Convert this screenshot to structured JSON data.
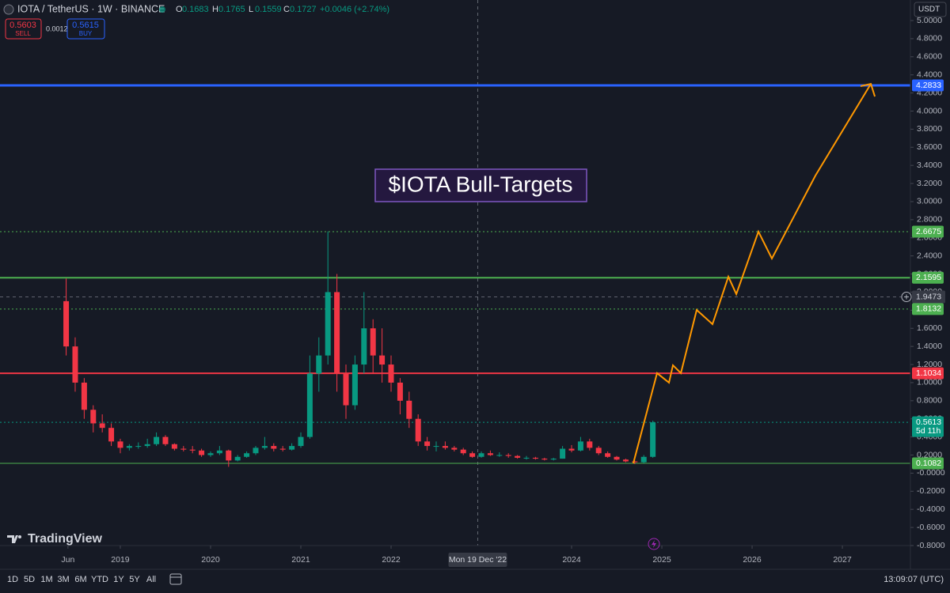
{
  "chart_data": {
    "type": "candlestick",
    "title": "$IOTA Bull-Targets",
    "candles": {
      "up_color": "#089981",
      "down_color": "#f23645",
      "x": [
        2018.4,
        2018.5,
        2018.6,
        2018.7,
        2018.8,
        2018.9,
        2019.0,
        2019.1,
        2019.2,
        2019.3,
        2019.4,
        2019.5,
        2019.6,
        2019.7,
        2019.8,
        2019.9,
        2020.0,
        2020.1,
        2020.2,
        2020.3,
        2020.4,
        2020.5,
        2020.6,
        2020.7,
        2020.8,
        2020.9,
        2021.0,
        2021.1,
        2021.2,
        2021.3,
        2021.4,
        2021.5,
        2021.6,
        2021.7,
        2021.8,
        2021.9,
        2022.0,
        2022.1,
        2022.2,
        2022.3,
        2022.4,
        2022.5,
        2022.6,
        2022.7,
        2022.8,
        2022.9,
        2023.0,
        2023.1,
        2023.2,
        2023.3,
        2023.4,
        2023.5,
        2023.6,
        2023.7,
        2023.8,
        2023.9,
        2024.0,
        2024.1,
        2024.2,
        2024.3,
        2024.4,
        2024.5,
        2024.6,
        2024.7,
        2024.8,
        2024.9
      ],
      "open": [
        1.9,
        1.4,
        1.0,
        0.7,
        0.55,
        0.5,
        0.35,
        0.28,
        0.3,
        0.3,
        0.32,
        0.4,
        0.32,
        0.27,
        0.26,
        0.25,
        0.2,
        0.22,
        0.25,
        0.14,
        0.18,
        0.22,
        0.28,
        0.3,
        0.27,
        0.26,
        0.3,
        0.4,
        1.1,
        1.3,
        2.0,
        1.1,
        0.75,
        1.2,
        1.6,
        1.3,
        1.2,
        1.0,
        0.8,
        0.6,
        0.35,
        0.3,
        0.3,
        0.28,
        0.26,
        0.22,
        0.18,
        0.22,
        0.2,
        0.2,
        0.19,
        0.17,
        0.17,
        0.16,
        0.15,
        0.16,
        0.27,
        0.25,
        0.35,
        0.28,
        0.22,
        0.18,
        0.15,
        0.13,
        0.12,
        0.18
      ],
      "high": [
        2.15,
        1.5,
        1.05,
        0.75,
        0.65,
        0.55,
        0.38,
        0.32,
        0.34,
        0.38,
        0.45,
        0.42,
        0.33,
        0.3,
        0.3,
        0.27,
        0.24,
        0.3,
        0.26,
        0.2,
        0.24,
        0.3,
        0.4,
        0.33,
        0.3,
        0.33,
        0.45,
        1.3,
        1.5,
        2.67,
        2.2,
        1.2,
        1.3,
        2.0,
        1.7,
        1.6,
        1.3,
        1.05,
        0.9,
        0.65,
        0.4,
        0.35,
        0.35,
        0.3,
        0.28,
        0.24,
        0.24,
        0.25,
        0.23,
        0.22,
        0.2,
        0.19,
        0.18,
        0.17,
        0.17,
        0.3,
        0.31,
        0.4,
        0.38,
        0.3,
        0.24,
        0.19,
        0.16,
        0.14,
        0.2,
        0.58
      ],
      "low": [
        1.3,
        0.9,
        0.6,
        0.45,
        0.45,
        0.3,
        0.22,
        0.25,
        0.27,
        0.28,
        0.3,
        0.3,
        0.25,
        0.24,
        0.22,
        0.18,
        0.18,
        0.2,
        0.07,
        0.13,
        0.17,
        0.2,
        0.26,
        0.24,
        0.24,
        0.25,
        0.28,
        0.38,
        0.9,
        1.2,
        0.9,
        0.6,
        0.7,
        1.1,
        1.1,
        1.0,
        0.9,
        0.65,
        0.5,
        0.3,
        0.25,
        0.24,
        0.26,
        0.24,
        0.2,
        0.17,
        0.17,
        0.19,
        0.18,
        0.17,
        0.16,
        0.15,
        0.15,
        0.14,
        0.14,
        0.16,
        0.23,
        0.24,
        0.25,
        0.2,
        0.17,
        0.14,
        0.12,
        0.1,
        0.11,
        0.17
      ],
      "close": [
        1.4,
        1.0,
        0.7,
        0.55,
        0.5,
        0.35,
        0.28,
        0.3,
        0.3,
        0.32,
        0.4,
        0.32,
        0.27,
        0.26,
        0.25,
        0.2,
        0.22,
        0.25,
        0.14,
        0.18,
        0.22,
        0.28,
        0.3,
        0.27,
        0.26,
        0.3,
        0.4,
        1.1,
        1.3,
        2.0,
        1.1,
        0.75,
        1.2,
        1.6,
        1.3,
        1.2,
        1.0,
        0.8,
        0.6,
        0.35,
        0.3,
        0.3,
        0.28,
        0.26,
        0.22,
        0.18,
        0.22,
        0.2,
        0.2,
        0.19,
        0.17,
        0.17,
        0.16,
        0.15,
        0.16,
        0.27,
        0.25,
        0.35,
        0.28,
        0.22,
        0.18,
        0.15,
        0.13,
        0.12,
        0.18,
        0.5613
      ]
    },
    "projection": {
      "color": "#ff9800",
      "x": [
        2024.684,
        2024.947,
        2025.079,
        2025.123,
        2025.211,
        2025.386,
        2025.561,
        2025.737,
        2025.825,
        2026.07,
        2026.219,
        2026.702,
        2027.316
      ],
      "values": [
        0.109,
        1.105,
        1.0,
        1.192,
        1.105,
        1.803,
        1.646,
        2.17,
        1.978,
        2.668,
        2.371,
        3.288,
        4.301
      ]
    },
    "levels": [
      {
        "value": 4.2833,
        "color": "#2962ff",
        "style": "solid",
        "width": 3
      },
      {
        "value": 2.6675,
        "color": "#4caf50",
        "style": "dotted",
        "width": 1
      },
      {
        "value": 2.1595,
        "color": "#4caf50",
        "style": "solid",
        "width": 2
      },
      {
        "value": 1.8132,
        "color": "#4caf50",
        "style": "dotted",
        "width": 1
      },
      {
        "value": 1.1034,
        "color": "#f23645",
        "style": "solid",
        "width": 2
      },
      {
        "value": 0.5613,
        "color": "#089981",
        "style": "dotted",
        "width": 1,
        "sublabel": "5d 11h"
      },
      {
        "value": 0.1082,
        "color": "#4caf50",
        "style": "solid",
        "width": 1
      }
    ],
    "crosshair": {
      "x": 2022.96,
      "y": 1.9473,
      "x_label": "Mon 19 Dec '22"
    },
    "xlim": [
      2017.667,
      2027.754
    ],
    "xticks": [
      {
        "value": 2018.42,
        "label": "Jun"
      },
      2019,
      2020,
      2021,
      2022,
      2024,
      2025,
      2026,
      2027
    ],
    "ylim": [
      -0.8,
      5.0
    ],
    "yticks": [
      {
        "value": 5.0,
        "label": "5.0000"
      },
      {
        "value": 4.8,
        "label": "4.8000"
      },
      {
        "value": 4.6,
        "label": "4.6000"
      },
      {
        "value": 4.4,
        "label": "4.4000"
      },
      {
        "value": 4.2,
        "label": "4.2000"
      },
      {
        "value": 4.0,
        "label": "4.0000"
      },
      {
        "value": 3.8,
        "label": "3.8000"
      },
      {
        "value": 3.6,
        "label": "3.6000"
      },
      {
        "value": 3.4,
        "label": "3.4000"
      },
      {
        "value": 3.2,
        "label": "3.2000"
      },
      {
        "value": 3.0,
        "label": "3.0000"
      },
      {
        "value": 2.8,
        "label": "2.8000"
      },
      {
        "value": 2.6,
        "label": "2.6000"
      },
      {
        "value": 2.4,
        "label": "2.4000"
      },
      {
        "value": 2.2,
        "label": "2.2000"
      },
      {
        "value": 2.0,
        "label": "2.0000"
      },
      {
        "value": 1.8,
        "label": "1.8000"
      },
      {
        "value": 1.6,
        "label": "1.6000"
      },
      {
        "value": 1.4,
        "label": "1.4000"
      },
      {
        "value": 1.2,
        "label": "1.2000"
      },
      {
        "value": 1.0,
        "label": "1.0000"
      },
      {
        "value": 0.8,
        "label": "0.8000"
      },
      {
        "value": 0.6,
        "label": "0.6000"
      },
      {
        "value": 0.4,
        "label": "0.4000"
      },
      {
        "value": 0.2,
        "label": "0.2000"
      },
      {
        "value": 0,
        "label": "-0.0000"
      },
      {
        "value": -0.2,
        "label": "-0.2000"
      },
      {
        "value": -0.4,
        "label": "-0.4000"
      },
      {
        "value": -0.6,
        "label": "-0.6000"
      },
      {
        "value": -0.8,
        "label": "-0.8000"
      }
    ]
  },
  "ui": {
    "symbol": "IOTA / TetherUS · 1W · BINANCE",
    "ohlc": [
      {
        "key": "O",
        "value": 0.1683
      },
      {
        "key": "H",
        "value": 0.1765
      },
      {
        "key": "L",
        "value": 0.1559
      },
      {
        "key": "C",
        "value": 0.1727
      }
    ],
    "change": "+0.0046 (+2.74%)",
    "sell": {
      "price": 0.5603,
      "label": "SELL"
    },
    "spread": 0.0012,
    "buy": {
      "price": 0.5615,
      "label": "BUY"
    },
    "currency": "USDT",
    "brand": "TradingView",
    "ranges": [
      "1D",
      "5D",
      "1M",
      "3M",
      "6M",
      "YTD",
      "1Y",
      "5Y",
      "All"
    ],
    "clock": "13:09:07 (UTC)"
  }
}
